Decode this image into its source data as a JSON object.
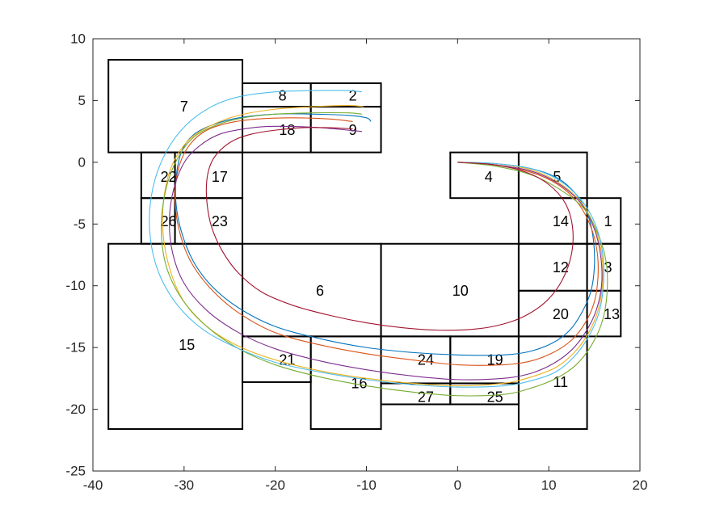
{
  "chart_data": {
    "type": "line",
    "title": "",
    "xlabel": "",
    "ylabel": "",
    "xlim": [
      -40,
      20
    ],
    "ylim": [
      -25,
      10
    ],
    "xticks": [
      -40,
      -30,
      -20,
      -10,
      0,
      10,
      20
    ],
    "yticks": [
      -25,
      -20,
      -15,
      -10,
      -5,
      0,
      5,
      10
    ],
    "xtick_labels": [
      "-40",
      "-30",
      "-20",
      "-10",
      "0",
      "10",
      "20"
    ],
    "ytick_labels": [
      "-25",
      "-20",
      "-15",
      "-10",
      "-5",
      "0",
      "5",
      "10"
    ],
    "grid": false,
    "regions": [
      {
        "id": "1",
        "x0": 14.2,
        "x1": 17.9,
        "y0": -6.6,
        "y1": -2.9,
        "label_x": 16.5,
        "label_y": -4.8
      },
      {
        "id": "2",
        "x0": -16.1,
        "x1": -8.4,
        "y0": 4.5,
        "y1": 6.4,
        "label_x": -11.5,
        "label_y": 5.4
      },
      {
        "id": "3",
        "x0": 14.2,
        "x1": 17.9,
        "y0": -10.4,
        "y1": -6.6,
        "label_x": 16.5,
        "label_y": -8.5
      },
      {
        "id": "4",
        "x0": -0.8,
        "x1": 6.7,
        "y0": -2.9,
        "y1": 0.8,
        "label_x": 3.4,
        "label_y": -1.2
      },
      {
        "id": "5",
        "x0": 6.7,
        "x1": 14.2,
        "y0": -2.9,
        "y1": 0.8,
        "label_x": 10.9,
        "label_y": -1.2
      },
      {
        "id": "6",
        "x0": -23.6,
        "x1": -8.4,
        "y0": -14.1,
        "y1": -6.6,
        "label_x": -15.1,
        "label_y": -10.4
      },
      {
        "id": "7",
        "x0": -38.3,
        "x1": -23.6,
        "y0": 0.8,
        "y1": 8.3,
        "label_x": -30.0,
        "label_y": 4.5
      },
      {
        "id": "8",
        "x0": -23.6,
        "x1": -16.1,
        "y0": 4.5,
        "y1": 6.4,
        "label_x": -19.2,
        "label_y": 5.4
      },
      {
        "id": "9",
        "x0": -16.1,
        "x1": -8.4,
        "y0": 0.8,
        "y1": 4.5,
        "label_x": -11.5,
        "label_y": 2.6
      },
      {
        "id": "10",
        "x0": -8.4,
        "x1": 6.7,
        "y0": -14.1,
        "y1": -6.6,
        "label_x": 0.3,
        "label_y": -10.4
      },
      {
        "id": "11",
        "x0": 6.7,
        "x1": 14.2,
        "y0": -21.6,
        "y1": -14.1,
        "label_x": 11.3,
        "label_y": -17.8
      },
      {
        "id": "12",
        "x0": 6.7,
        "x1": 14.2,
        "y0": -10.4,
        "y1": -6.6,
        "label_x": 11.3,
        "label_y": -8.5
      },
      {
        "id": "13",
        "x0": 14.2,
        "x1": 17.9,
        "y0": -14.1,
        "y1": -10.4,
        "label_x": 16.9,
        "label_y": -12.3
      },
      {
        "id": "14",
        "x0": 6.7,
        "x1": 14.2,
        "y0": -6.6,
        "y1": -2.9,
        "label_x": 11.3,
        "label_y": -4.8
      },
      {
        "id": "15",
        "x0": -38.3,
        "x1": -23.6,
        "y0": -21.6,
        "y1": -6.6,
        "label_x": -29.7,
        "label_y": -14.8
      },
      {
        "id": "16",
        "x0": -16.1,
        "x1": -8.4,
        "y0": -21.6,
        "y1": -14.1,
        "label_x": -10.8,
        "label_y": -17.9
      },
      {
        "id": "17",
        "x0": -31.0,
        "x1": -23.6,
        "y0": -2.9,
        "y1": 0.8,
        "label_x": -26.1,
        "label_y": -1.2
      },
      {
        "id": "18",
        "x0": -23.6,
        "x1": -16.1,
        "y0": 0.8,
        "y1": 4.5,
        "label_x": -18.7,
        "label_y": 2.6
      },
      {
        "id": "19",
        "x0": -0.8,
        "x1": 6.7,
        "y0": -17.9,
        "y1": -14.1,
        "label_x": 4.1,
        "label_y": -16.0
      },
      {
        "id": "20",
        "x0": 6.7,
        "x1": 14.2,
        "y0": -14.1,
        "y1": -10.4,
        "label_x": 11.3,
        "label_y": -12.3
      },
      {
        "id": "21",
        "x0": -23.6,
        "x1": -16.1,
        "y0": -17.8,
        "y1": -14.1,
        "label_x": -18.7,
        "label_y": -16.0
      },
      {
        "id": "22",
        "x0": -34.7,
        "x1": -31.0,
        "y0": -2.9,
        "y1": 0.8,
        "label_x": -31.7,
        "label_y": -1.2
      },
      {
        "id": "23",
        "x0": -31.0,
        "x1": -23.6,
        "y0": -6.6,
        "y1": -2.9,
        "label_x": -26.1,
        "label_y": -4.8
      },
      {
        "id": "24",
        "x0": -8.4,
        "x1": -0.8,
        "y0": -17.9,
        "y1": -14.1,
        "label_x": -3.5,
        "label_y": -16.0
      },
      {
        "id": "25",
        "x0": -0.8,
        "x1": 6.7,
        "y0": -19.6,
        "y1": -17.9,
        "label_x": 4.1,
        "label_y": -19.0
      },
      {
        "id": "26",
        "x0": -34.7,
        "x1": -31.0,
        "y0": -6.6,
        "y1": -2.9,
        "label_x": -31.7,
        "label_y": -4.8
      },
      {
        "id": "27",
        "x0": -8.4,
        "x1": -0.8,
        "y0": -19.6,
        "y1": -17.9,
        "label_x": -3.5,
        "label_y": -19.0
      }
    ],
    "series": [
      {
        "color": "#0072BD",
        "x": [
          0,
          4,
          8,
          11,
          13,
          14.3,
          14.9,
          15.0,
          14.6,
          13.6,
          12.3,
          10.5,
          8,
          5,
          0,
          -5,
          -10,
          -15,
          -20,
          -24,
          -27,
          -29,
          -30.3,
          -30.9,
          -30.8,
          -30.2,
          -29,
          -27,
          -24,
          -20,
          -16,
          -12,
          -10,
          -9.5
        ],
        "y": [
          0,
          -0.1,
          -0.5,
          -1.3,
          -2.6,
          -4.3,
          -6.3,
          -8.5,
          -10.5,
          -12.2,
          -13.6,
          -14.6,
          -15.3,
          -15.6,
          -15.6,
          -15.4,
          -15.0,
          -14.3,
          -13.3,
          -11.8,
          -10.0,
          -8.0,
          -5.6,
          -3.2,
          -0.8,
          1.0,
          2.2,
          3.0,
          3.6,
          3.9,
          3.9,
          3.8,
          3.6,
          3.3
        ]
      },
      {
        "color": "#D95319",
        "x": [
          0,
          4,
          8,
          11,
          13.2,
          14.6,
          15.3,
          15.4,
          15.0,
          14.0,
          12.5,
          10.5,
          8,
          5,
          0,
          -5,
          -10,
          -15,
          -20,
          -24,
          -27,
          -29.3,
          -30.6,
          -31.0,
          -30.5,
          -29.3,
          -27.5,
          -25,
          -22,
          -18,
          -14,
          -11.5
        ],
        "y": [
          0,
          -0.2,
          -0.8,
          -1.8,
          -3.3,
          -5.2,
          -7.2,
          -9.3,
          -11.3,
          -13.0,
          -14.4,
          -15.4,
          -16.1,
          -16.4,
          -16.4,
          -16.0,
          -15.5,
          -14.8,
          -13.8,
          -12.2,
          -10.3,
          -8.0,
          -5.3,
          -2.5,
          -0.2,
          1.5,
          2.6,
          3.2,
          3.5,
          3.6,
          3.5,
          3.3
        ]
      },
      {
        "color": "#EDB120",
        "x": [
          0,
          4,
          8,
          11,
          13.5,
          15.0,
          15.8,
          15.9,
          15.4,
          14.3,
          12.8,
          10.8,
          8,
          5,
          0,
          -5,
          -10,
          -15,
          -20,
          -24,
          -27.5,
          -30,
          -31.5,
          -32.3,
          -32.2,
          -31.3,
          -29.5,
          -27,
          -24,
          -20,
          -16,
          -12,
          -10.3
        ],
        "y": [
          0,
          -0.1,
          -0.6,
          -1.6,
          -3.2,
          -5.2,
          -7.4,
          -9.8,
          -12.0,
          -13.9,
          -15.4,
          -16.6,
          -17.4,
          -17.9,
          -18.1,
          -17.9,
          -17.5,
          -16.9,
          -16.0,
          -14.9,
          -13.3,
          -11.3,
          -8.8,
          -5.8,
          -2.8,
          -0.2,
          1.8,
          3.0,
          3.8,
          4.3,
          4.5,
          4.6,
          4.5
        ]
      },
      {
        "color": "#7E2F8E",
        "x": [
          0,
          4,
          8,
          11,
          13.5,
          15.0,
          15.7,
          15.8,
          15.2,
          14.0,
          12.5,
          10.5,
          8,
          5,
          0,
          -5,
          -10,
          -15,
          -20,
          -24,
          -27.5,
          -30,
          -31.3,
          -31.6,
          -31.0,
          -29.8,
          -28,
          -26,
          -23.5,
          -21,
          -18,
          -15,
          -12,
          -10.5
        ],
        "y": [
          0,
          -0.2,
          -0.7,
          -1.7,
          -3.3,
          -5.4,
          -7.6,
          -9.9,
          -12.0,
          -13.8,
          -15.2,
          -16.3,
          -17.1,
          -17.5,
          -17.6,
          -17.3,
          -16.8,
          -16.1,
          -15.1,
          -13.8,
          -12.0,
          -9.8,
          -7.2,
          -4.4,
          -1.8,
          0.2,
          1.5,
          2.3,
          2.7,
          2.9,
          2.9,
          2.8,
          2.6,
          2.5
        ]
      },
      {
        "color": "#77AC30",
        "x": [
          0,
          4,
          8,
          11,
          13.8,
          15.4,
          16.3,
          16.4,
          15.9,
          14.7,
          13.0,
          10.8,
          8,
          5,
          0,
          -5,
          -10,
          -15,
          -20,
          -24,
          -27.5,
          -30.3,
          -32.0,
          -32.5,
          -32.0,
          -30.8,
          -29,
          -26.5,
          -23.5,
          -20,
          -16,
          -12,
          -10.5
        ],
        "y": [
          0,
          -0.3,
          -1.0,
          -2.1,
          -3.7,
          -5.8,
          -8.1,
          -10.5,
          -12.8,
          -14.8,
          -16.4,
          -17.5,
          -18.3,
          -18.8,
          -18.9,
          -18.6,
          -18.1,
          -17.4,
          -16.4,
          -15.1,
          -13.3,
          -11.0,
          -8.3,
          -5.2,
          -2.2,
          0.2,
          2.0,
          3.0,
          3.6,
          3.9,
          4.0,
          4.0,
          3.9
        ]
      },
      {
        "color": "#4DBEEE",
        "x": [
          0,
          4,
          8,
          11,
          13.5,
          15.1,
          15.9,
          16.0,
          15.5,
          14.3,
          12.7,
          10.7,
          8,
          5,
          0,
          -5,
          -10,
          -15,
          -20,
          -24,
          -28,
          -31,
          -33,
          -33.8,
          -33.4,
          -32.0,
          -29.8,
          -27,
          -24,
          -20,
          -16,
          -12,
          -10.5
        ],
        "y": [
          0,
          -0.1,
          -0.5,
          -1.4,
          -3.0,
          -5.0,
          -7.3,
          -9.8,
          -12.2,
          -14.2,
          -15.8,
          -17.0,
          -17.7,
          -18.1,
          -18.2,
          -18.0,
          -17.6,
          -17.0,
          -16.2,
          -15.1,
          -13.5,
          -11.3,
          -8.5,
          -5.2,
          -2.0,
          0.8,
          3.0,
          4.5,
          5.3,
          5.7,
          5.8,
          5.8,
          5.7
        ]
      },
      {
        "color": "#A2142F",
        "x": [
          0,
          4,
          7.5,
          10,
          11.8,
          12.6,
          12.5,
          11.5,
          9.8,
          7.5,
          5,
          2,
          -2,
          -6,
          -10,
          -14,
          -18,
          -21.5,
          -24,
          -25.8,
          -27,
          -27.5,
          -27.5,
          -27.0,
          -26.0,
          -24.5,
          -22.5,
          -20,
          -17,
          -14,
          -11.5
        ],
        "y": [
          0,
          -0.2,
          -0.8,
          -1.8,
          -3.3,
          -5.2,
          -7.4,
          -9.5,
          -11.2,
          -12.4,
          -13.1,
          -13.5,
          -13.6,
          -13.4,
          -13.0,
          -12.4,
          -11.6,
          -10.5,
          -9.0,
          -7.2,
          -5.2,
          -3.2,
          -1.4,
          0.0,
          1.0,
          1.8,
          2.3,
          2.6,
          2.8,
          2.8,
          2.7
        ]
      }
    ]
  }
}
